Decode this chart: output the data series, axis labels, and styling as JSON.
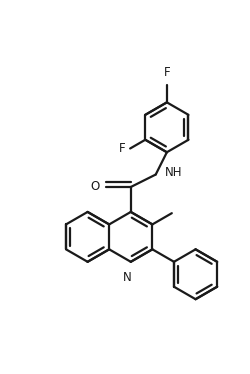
{
  "bg_color": "#ffffff",
  "line_color": "#1a1a1a",
  "line_width": 1.6,
  "font_size": 8.5,
  "fig_width": 2.5,
  "fig_height": 3.74,
  "xlim": [
    0,
    10
  ],
  "ylim": [
    0,
    15
  ]
}
